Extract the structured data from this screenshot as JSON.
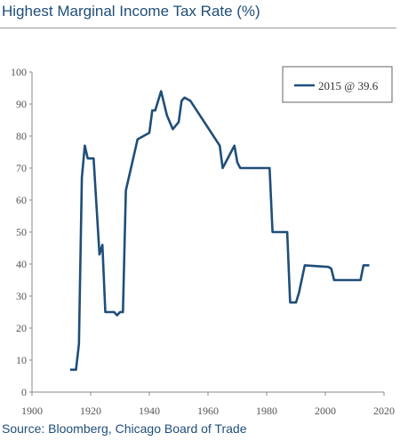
{
  "title": "Highest Marginal Income Tax Rate (%)",
  "source": "Source: Bloomberg, Chicago Board of Trade",
  "colors": {
    "line": "#1f4e79",
    "axis": "#888888",
    "text": "#1f4e79"
  },
  "chart_data": {
    "type": "line",
    "title": "Highest Marginal Income Tax Rate (%)",
    "xlabel": "",
    "ylabel": "",
    "xlim": [
      1900,
      2020
    ],
    "ylim": [
      0,
      100
    ],
    "x_ticks": [
      "1900",
      "1920",
      "1940",
      "1960",
      "1980",
      "2000",
      "2020"
    ],
    "y_ticks": [
      "0",
      "10",
      "20",
      "30",
      "40",
      "50",
      "60",
      "70",
      "80",
      "90",
      "100"
    ],
    "grid": false,
    "legend_position": "top-right",
    "series": [
      {
        "name": "2015 @ 39.6",
        "x": [
          1913,
          1915,
          1916,
          1917,
          1918,
          1919,
          1921,
          1922,
          1923,
          1924,
          1925,
          1928,
          1929,
          1930,
          1931,
          1932,
          1936,
          1940,
          1941,
          1942,
          1944,
          1946,
          1948,
          1950,
          1951,
          1952,
          1954,
          1964,
          1965,
          1968,
          1969,
          1970,
          1971,
          1981,
          1982,
          1987,
          1988,
          1990,
          1991,
          1993,
          2001,
          2002,
          2003,
          2012,
          2013,
          2015
        ],
        "y": [
          7,
          7,
          15,
          67,
          77,
          73,
          73,
          58,
          43,
          46,
          25,
          25,
          24,
          25,
          25,
          63,
          79,
          81,
          88,
          88,
          94,
          86.45,
          82.13,
          84.36,
          91,
          92,
          91,
          77,
          70,
          75.25,
          77,
          71.75,
          70,
          70,
          50,
          50,
          28,
          28,
          31,
          39.6,
          39.1,
          38.6,
          35,
          35,
          39.6,
          39.6
        ]
      }
    ]
  }
}
